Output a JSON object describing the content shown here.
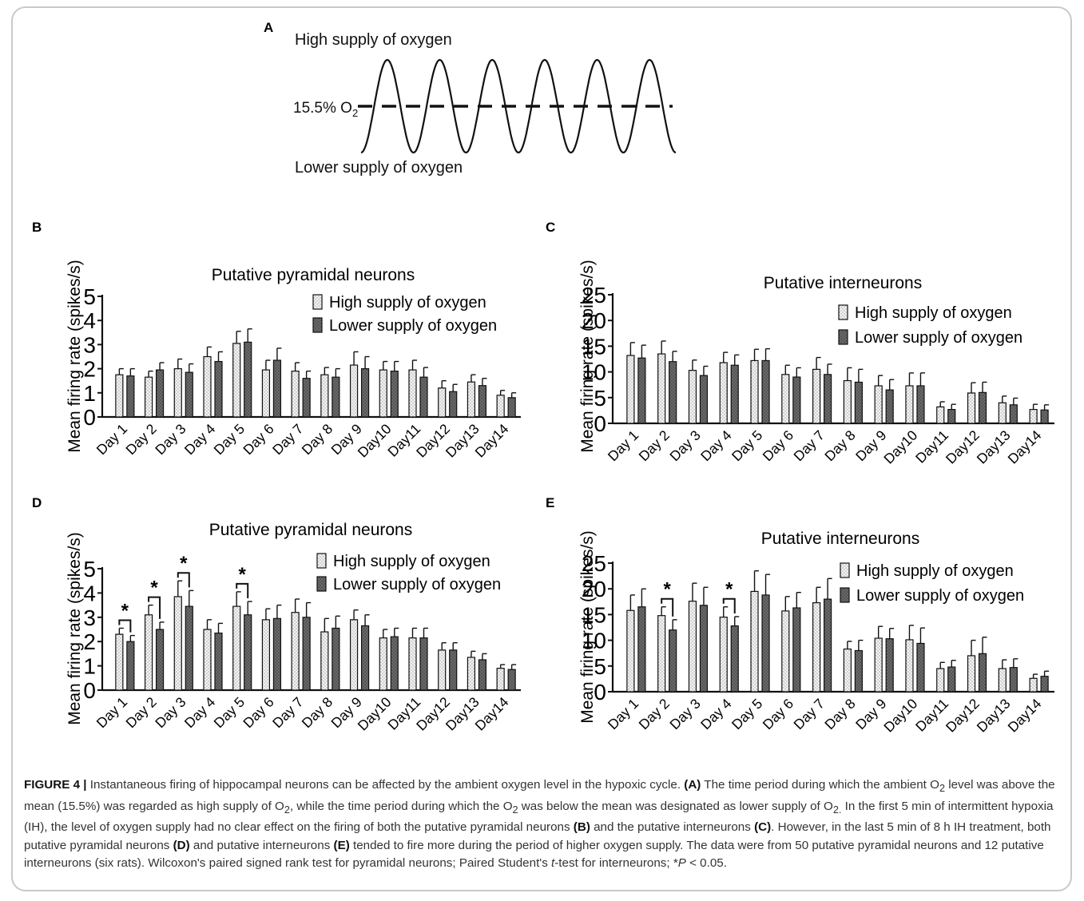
{
  "panel_a": {
    "label": "A",
    "top_label": "High supply of oxygen",
    "bottom_label": "Lower supply of oxygen",
    "mean_label": "15.5% O",
    "mean_label_sub": "2"
  },
  "chart_data": [
    {
      "panel": "B",
      "type": "bar",
      "title": "Putative pyramidal neurons",
      "ylabel": "Mean firing rate (spikes/s)",
      "ylim": [
        0,
        5
      ],
      "yticks": [
        "0",
        "1",
        "2",
        "3",
        "4",
        "5"
      ],
      "categories": [
        "Day 1",
        "Day 2",
        "Day 3",
        "Day 4",
        "Day 5",
        "Day 6",
        "Day 7",
        "Day 8",
        "Day 9",
        "Day10",
        "Day11",
        "Day12",
        "Day13",
        "Day14"
      ],
      "legend": "top-right",
      "series": [
        {
          "name": "High supply of oxygen",
          "values": [
            1.75,
            1.65,
            2.0,
            2.5,
            3.05,
            1.95,
            1.9,
            1.75,
            2.15,
            1.95,
            1.95,
            1.2,
            1.45,
            0.9
          ],
          "errors": [
            0.25,
            0.25,
            0.4,
            0.4,
            0.5,
            0.4,
            0.35,
            0.3,
            0.55,
            0.35,
            0.4,
            0.3,
            0.3,
            0.2
          ]
        },
        {
          "name": "Lower supply of oxygen",
          "values": [
            1.7,
            1.95,
            1.85,
            2.3,
            3.1,
            2.35,
            1.6,
            1.65,
            2.0,
            1.9,
            1.65,
            1.05,
            1.3,
            0.8
          ],
          "errors": [
            0.3,
            0.3,
            0.35,
            0.4,
            0.55,
            0.5,
            0.3,
            0.35,
            0.5,
            0.4,
            0.4,
            0.3,
            0.3,
            0.2
          ]
        }
      ],
      "significant": []
    },
    {
      "panel": "C",
      "type": "bar",
      "title": "Putative interneurons",
      "ylabel": "Mean firing rate (spikes/s)",
      "ylim": [
        0,
        25
      ],
      "yticks": [
        "0",
        "5",
        "10",
        "15",
        "20",
        "25"
      ],
      "categories": [
        "Day 1",
        "Day 2",
        "Day 3",
        "Day 4",
        "Day 5",
        "Day 6",
        "Day 7",
        "Day 8",
        "Day 9",
        "Day10",
        "Day11",
        "Day12",
        "Day13",
        "Day14"
      ],
      "legend": "top-right",
      "series": [
        {
          "name": "High supply of oxygen",
          "values": [
            13.2,
            13.5,
            10.3,
            11.8,
            12.2,
            9.5,
            10.5,
            8.3,
            7.3,
            7.3,
            3.2,
            5.9,
            4.0,
            2.7
          ],
          "errors": [
            2.5,
            2.5,
            2.0,
            2.0,
            2.2,
            1.8,
            2.3,
            2.5,
            2.0,
            2.5,
            1.0,
            2.0,
            1.3,
            1.0
          ]
        },
        {
          "name": "Lower supply of oxygen",
          "values": [
            12.7,
            12.0,
            9.3,
            11.3,
            12.2,
            9.0,
            9.5,
            8.0,
            6.5,
            7.3,
            2.7,
            6.0,
            3.6,
            2.6
          ],
          "errors": [
            2.5,
            2.0,
            1.8,
            2.0,
            2.3,
            1.8,
            2.0,
            2.5,
            2.0,
            2.5,
            1.0,
            2.0,
            1.3,
            1.0
          ]
        }
      ],
      "significant": []
    },
    {
      "panel": "D",
      "type": "bar",
      "title": "Putative pyramidal neurons",
      "ylabel": "Mean firing rate (spikes/s)",
      "ylim": [
        0,
        5
      ],
      "yticks": [
        "0",
        "1",
        "2",
        "3",
        "4",
        "5"
      ],
      "categories": [
        "Day 1",
        "Day 2",
        "Day 3",
        "Day 4",
        "Day 5",
        "Day 6",
        "Day 7",
        "Day 8",
        "Day 9",
        "Day10",
        "Day11",
        "Day12",
        "Day13",
        "Day14"
      ],
      "legend": "top-right",
      "series": [
        {
          "name": "High supply of oxygen",
          "values": [
            2.3,
            3.1,
            3.85,
            2.5,
            3.45,
            2.9,
            3.2,
            2.4,
            2.9,
            2.15,
            2.15,
            1.65,
            1.35,
            0.9
          ],
          "errors": [
            0.25,
            0.4,
            0.65,
            0.4,
            0.6,
            0.45,
            0.55,
            0.55,
            0.4,
            0.35,
            0.4,
            0.3,
            0.25,
            0.15
          ]
        },
        {
          "name": "Lower supply of oxygen",
          "values": [
            2.0,
            2.5,
            3.45,
            2.35,
            3.1,
            2.95,
            3.0,
            2.55,
            2.65,
            2.2,
            2.15,
            1.65,
            1.25,
            0.85
          ],
          "errors": [
            0.25,
            0.3,
            0.65,
            0.4,
            0.55,
            0.55,
            0.6,
            0.5,
            0.45,
            0.35,
            0.4,
            0.3,
            0.25,
            0.2
          ]
        }
      ],
      "significant": [
        {
          "day_index": 0,
          "label": "*"
        },
        {
          "day_index": 1,
          "label": "*"
        },
        {
          "day_index": 2,
          "label": "*"
        },
        {
          "day_index": 4,
          "label": "*"
        }
      ]
    },
    {
      "panel": "E",
      "type": "bar",
      "title": "Putative interneurons",
      "ylabel": "Mean firing rate (spikes/s)",
      "ylim": [
        0,
        25
      ],
      "yticks": [
        "0",
        "5",
        "10",
        "15",
        "20",
        "25"
      ],
      "categories": [
        "Day 1",
        "Day 2",
        "Day 3",
        "Day 4",
        "Day 5",
        "Day 6",
        "Day 7",
        "Day 8",
        "Day 9",
        "Day10",
        "Day11",
        "Day12",
        "Day13",
        "Day14"
      ],
      "legend": "top-right",
      "series": [
        {
          "name": "High supply of oxygen",
          "values": [
            15.8,
            14.8,
            17.6,
            14.5,
            19.5,
            15.7,
            17.3,
            8.3,
            10.4,
            10.1,
            4.5,
            7.0,
            4.5,
            2.6
          ],
          "errors": [
            3.0,
            1.7,
            3.5,
            2.0,
            4.0,
            2.8,
            3.0,
            1.5,
            2.3,
            2.8,
            1.2,
            3.0,
            1.7,
            0.8
          ]
        },
        {
          "name": "Lower supply of oxygen",
          "values": [
            16.5,
            12.0,
            16.8,
            12.8,
            18.8,
            16.3,
            18.0,
            8.0,
            10.3,
            9.4,
            4.8,
            7.4,
            4.7,
            3.0
          ],
          "errors": [
            3.5,
            2.0,
            3.5,
            1.8,
            4.0,
            3.0,
            4.0,
            2.0,
            2.0,
            3.0,
            1.3,
            3.2,
            1.7,
            1.0
          ]
        }
      ],
      "significant": [
        {
          "day_index": 1,
          "label": "*"
        },
        {
          "day_index": 3,
          "label": "*"
        }
      ]
    }
  ],
  "caption": {
    "fig_label": "FIGURE 4 |",
    "l1": " Instantaneous firing of hippocampal neurons can be affected by the ambient oxygen level in the hypoxic cycle. ",
    "A": "(A)",
    "l2": " The time period during which the ambient O",
    "sub2a": "2",
    "l3": " level was above the mean (15.5%) was regarded as high supply of O",
    "sub2b": "2",
    "l4": ", while the time period during which the O",
    "sub2c": "2",
    "l5": " was below the mean was designated as lower supply of O",
    "sub2d": "2.",
    "l6": " In the first 5 min of intermittent hypoxia (IH), the level of oxygen supply had no clear effect on the firing of both the putative pyramidal neurons ",
    "B": "(B)",
    "l7": " and the putative interneurons ",
    "C": "(C)",
    "l8": ". However, in the last 5 min of 8 h IH treatment, both putative pyramidal neurons ",
    "D": "(D)",
    "l9": " and putative interneurons ",
    "E": "(E)",
    "l10": " tended to fire more during the period of higher oxygen supply. The data were from 50 putative pyramidal neurons and 12 putative interneurons (six rats). Wilcoxon's paired signed rank test for pyramidal neurons; Paired Student's ",
    "t": "t",
    "l11": "-test for interneurons; *",
    "P": "P",
    "l12": " < 0.05."
  }
}
